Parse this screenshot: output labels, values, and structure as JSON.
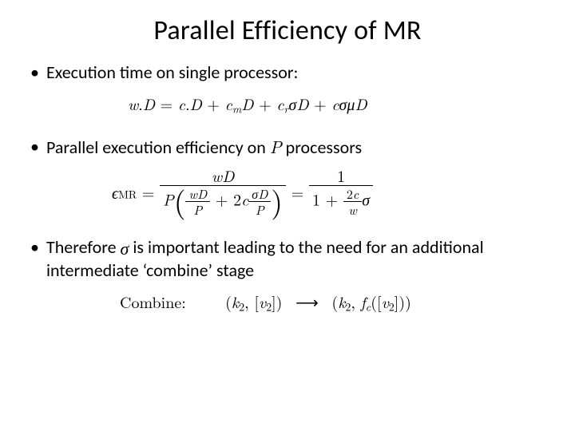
{
  "title": "Parallel Efficiency of MR",
  "bullets": {
    "b1": "Execution time on single processor:",
    "b2_pre": "Parallel execution efficiency on ",
    "b2_P": "P",
    "b2_post": " processors",
    "b3_pre": "Therefore ",
    "b3_post": " is important leading to the need for an additional  intermediate ‘combine’ stage"
  },
  "eq1": {
    "lhs_w": "w",
    "lhs_dot": ".",
    "lhs_D": "D",
    "rhs_c": "c",
    "rhs_dot": ".",
    "rhs_D": "D",
    "plus": " + ",
    "cm_c": "c",
    "cm_m": "m",
    "cm_D": "D",
    "cr_c": "c",
    "cr_r": "r",
    "cr_sigma": "σ",
    "cr_D": "D",
    "last_c": "c",
    "last_sigma": "σ",
    "last_mu": "μ",
    "last_D": "D",
    "eq": " = "
  },
  "eq2": {
    "eps": "ϵ",
    "eps_sub": "MR",
    "eq": " = ",
    "num1_w": "w",
    "num1_D": "D",
    "den1_P": "P",
    "den1_inner_num_wD_w": "w",
    "den1_inner_num_wD_D": "D",
    "den1_inner_den_P": "P",
    "den1_plus": " + 2",
    "den1_c": "c",
    "den1_inner2_num_sigma": "σ",
    "den1_inner2_num_D": "D",
    "den1_inner2_den_P": "P",
    "rhs_num_1": "1",
    "rhs_den_1": "1 + ",
    "rhs_den_frac_num": "2c",
    "rhs_den_frac_num_c": "c",
    "rhs_den_frac_den_w": "w",
    "rhs_den_sigma": "σ"
  },
  "eq3": {
    "label": "Combine:",
    "k2": "k",
    "two": "2",
    "v2": "v",
    "arrow": "⟶",
    "fc_f": "f",
    "fc_c": "c"
  },
  "colors": {
    "text": "#000000",
    "bg": "#ffffff"
  },
  "fonts": {
    "body_family": "Calibri",
    "math_family": "Cambria Math / Times",
    "title_size_pt": 26,
    "bullet_size_pt": 17,
    "equation_size_pt": 15
  }
}
